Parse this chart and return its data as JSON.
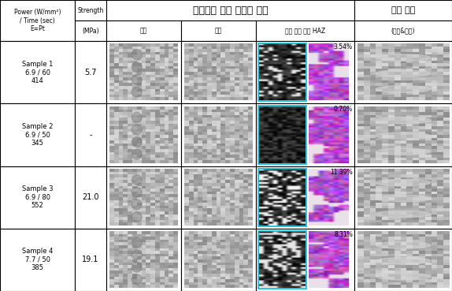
{
  "title_main": "레이저로 직접 조사된 시편",
  "title_right": "아래 시편",
  "subtitle_right": "(위면&계면)",
  "col_header1": "Power (W/mm²)\n/ Time (sec)\nE=Pt",
  "col_header2": "Strength\n\n(MPa)",
  "col_header3": "윗면",
  "col_header4": "계면",
  "col_header5": "전체 사진 대비 HAZ",
  "col_header6": "(위면&계면)",
  "rows": [
    {
      "label": "Sample 1\n6.9 / 60\n414",
      "strength": "5.7",
      "haz": "3.54%"
    },
    {
      "label": "Sample 2\n6.9 / 50\n345",
      "strength": "-",
      "haz": "0.70%"
    },
    {
      "label": "Sample 3\n6.9 / 80\n552",
      "strength": "21.0",
      "haz": "11.39%"
    },
    {
      "label": "Sample 4\n7.7 / 50\n385",
      "strength": "19.1",
      "haz": "8.31%"
    }
  ],
  "background_color": "#ffffff",
  "border_color": "#000000",
  "header_bg": "#ffffff",
  "text_color": "#000000",
  "cell_bg": "#e8e8e8",
  "haz_cell_bg_left": "#000000",
  "haz_cell_bg_right": "#f5f0f5",
  "teal_box_color": "#00bcd4",
  "fig_width": 5.74,
  "fig_height": 3.69
}
